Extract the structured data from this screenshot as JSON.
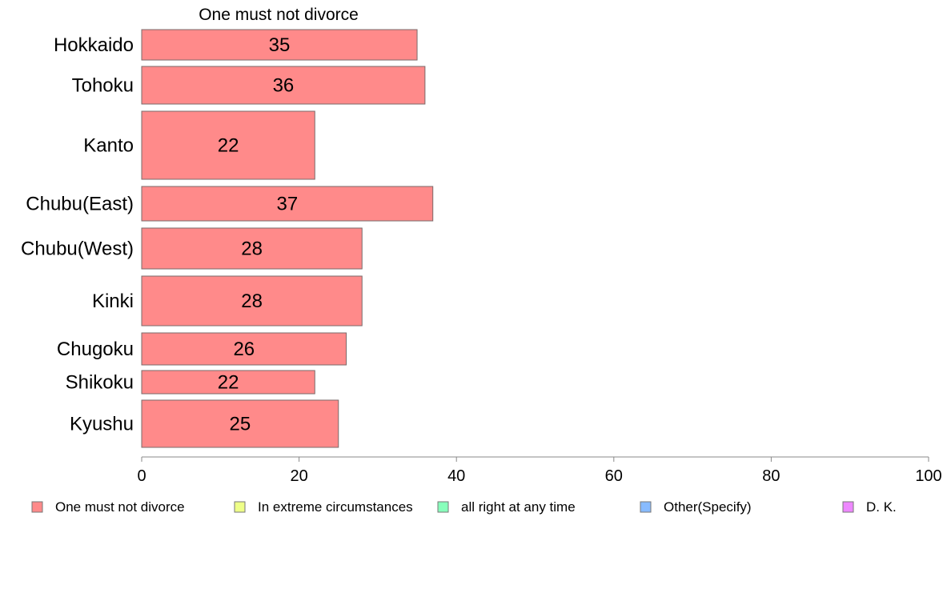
{
  "chart_data": {
    "type": "bar",
    "orientation": "horizontal",
    "stacked": true,
    "title": "One must not divorce",
    "categories": [
      "Hokkaido",
      "Tohoku",
      "Kanto",
      "Chubu(East)",
      "Chubu(West)",
      "Kinki",
      "Chugoku",
      "Shikoku",
      "Kyushu"
    ],
    "series": [
      {
        "name": "One must not divorce",
        "values": [
          35,
          36,
          22,
          37,
          28,
          28,
          26,
          22,
          25
        ],
        "color": "#ff8a8a"
      }
    ],
    "xlim": [
      0,
      100
    ],
    "xticks": [
      0,
      20,
      40,
      60,
      80,
      100
    ],
    "legend": [
      {
        "label": "One must not divorce",
        "color": "#ff8a8a"
      },
      {
        "label": "In extreme circumstances",
        "color": "#eeff88"
      },
      {
        "label": "all right at any time",
        "color": "#88ffbb"
      },
      {
        "label": "Other(Specify)",
        "color": "#88bbff"
      },
      {
        "label": "D. K.",
        "color": "#ee88ff"
      }
    ],
    "legend_position": "bottom",
    "grid": false
  }
}
